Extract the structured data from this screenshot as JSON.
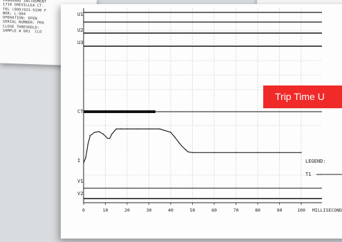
{
  "printout": {
    "lines": [
      "VANGUARD INSTRUMENT",
      "1710 GREVILLEA CT.",
      "TEL (909)923-9390 F",
      "BKR: L-904",
      "OPERATION: OPEN",
      "SERIAL NUMBER: PRO",
      "CLOSE THRESHOLD:",
      "SAMPLE # 001  CLO"
    ]
  },
  "chart": {
    "row_labels": {
      "u1": "U1",
      "u2": "U2",
      "u3": "U3",
      "ct": "CT",
      "i": "I",
      "v1": "V1",
      "v2": "V2"
    },
    "x_ticks": [
      "0",
      "10",
      "20",
      "30",
      "40",
      "50",
      "60",
      "70",
      "80",
      "90",
      "100"
    ],
    "x_unit": "MILLISECOND",
    "legend_title": "LEGEND:",
    "legend_item": "T1"
  },
  "chart_data": {
    "type": "line",
    "xlabel": "MILLISECOND",
    "xlim": [
      0,
      100
    ],
    "x_ticks": [
      0,
      10,
      20,
      30,
      40,
      50,
      60,
      70,
      80,
      90,
      100
    ],
    "grid": true,
    "series": [
      {
        "name": "I",
        "x": [
          0,
          1,
          2,
          3,
          5,
          7,
          9,
          11,
          12,
          13,
          15,
          17,
          20,
          25,
          30,
          35,
          40,
          42,
          44,
          45,
          47,
          48,
          50,
          60,
          70,
          80,
          90,
          100
        ],
        "y": [
          0,
          0.15,
          0.55,
          0.8,
          0.9,
          0.92,
          0.85,
          0.72,
          0.72,
          0.85,
          1.0,
          1.0,
          1.0,
          1.0,
          1.0,
          1.0,
          0.9,
          0.75,
          0.58,
          0.5,
          0.38,
          0.32,
          0.3,
          0.3,
          0.3,
          0.3,
          0.3,
          0.3
        ]
      },
      {
        "name": "CT",
        "x": [
          0,
          33
        ],
        "y": [
          1,
          1
        ]
      }
    ],
    "overlay_label": "Trip Time U"
  },
  "overlay": {
    "trip_time_label": "Trip Time U"
  }
}
